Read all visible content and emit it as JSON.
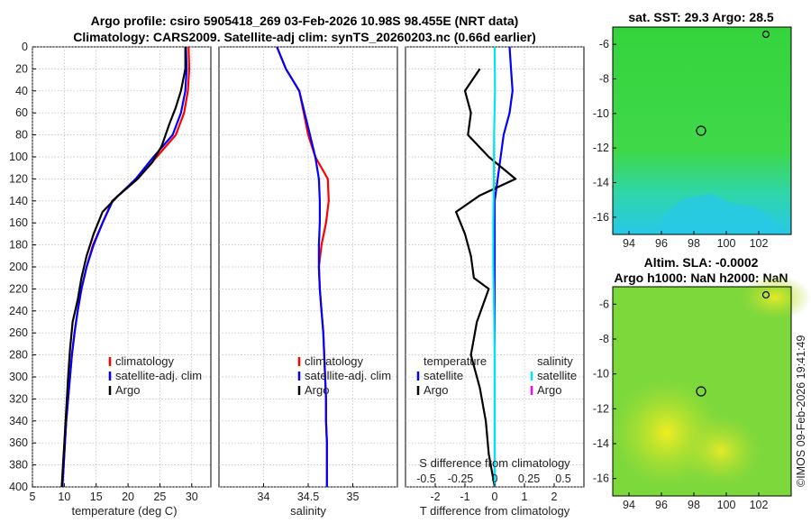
{
  "header": {
    "title_line1": "Argo profile: csiro 5905418_269 03-Feb-2026 10.98S 98.455E (NRT data)",
    "title_line2": "Climatology: CARS2009. Satellite-adj clim: synTS_20260203.nc (0.66d earlier)"
  },
  "colors": {
    "climatology": "#ff0000",
    "satellite": "#0000ff",
    "argo": "#000000",
    "sal_diff": "#00e5ee",
    "sal_argo": "#ff00ff"
  },
  "chart_data": [
    {
      "type": "line",
      "id": "temperature",
      "xlabel": "temperature (deg C)",
      "ylabel": "",
      "xlim": [
        5,
        33
      ],
      "ylim": [
        400,
        0
      ],
      "xticks": [
        5,
        10,
        15,
        20,
        25,
        30
      ],
      "yticks": [
        0,
        20,
        40,
        60,
        80,
        100,
        120,
        140,
        160,
        180,
        200,
        220,
        240,
        260,
        280,
        300,
        320,
        340,
        360,
        380,
        400
      ],
      "grid": true,
      "legend": {
        "position": "lower-right",
        "entries": [
          "climatology",
          "satellite-adj. clim",
          "Argo"
        ]
      },
      "series": [
        {
          "name": "climatology",
          "color": "#ff0000",
          "points": [
            [
              29.5,
              0
            ],
            [
              29.6,
              20
            ],
            [
              29.4,
              40
            ],
            [
              28.8,
              60
            ],
            [
              27.5,
              80
            ],
            [
              24.5,
              100
            ],
            [
              21.5,
              120
            ],
            [
              17.5,
              140
            ],
            [
              16,
              160
            ],
            [
              14.5,
              180
            ],
            [
              13.5,
              200
            ],
            [
              12.7,
              220
            ],
            [
              12.1,
              240
            ],
            [
              11.6,
              260
            ],
            [
              11.2,
              280
            ],
            [
              10.9,
              300
            ],
            [
              10.6,
              320
            ],
            [
              10.3,
              340
            ],
            [
              10.1,
              360
            ],
            [
              9.9,
              380
            ],
            [
              9.7,
              400
            ]
          ]
        },
        {
          "name": "satellite-adj. clim",
          "color": "#0000ff",
          "points": [
            [
              29.1,
              0
            ],
            [
              29.2,
              20
            ],
            [
              29.0,
              40
            ],
            [
              28.3,
              60
            ],
            [
              27,
              80
            ],
            [
              24,
              100
            ],
            [
              21.2,
              120
            ],
            [
              17.6,
              140
            ],
            [
              16,
              160
            ],
            [
              14.6,
              180
            ],
            [
              13.5,
              200
            ],
            [
              12.7,
              220
            ],
            [
              12.1,
              240
            ],
            [
              11.6,
              260
            ],
            [
              11.2,
              280
            ],
            [
              10.9,
              300
            ],
            [
              10.6,
              320
            ],
            [
              10.3,
              340
            ],
            [
              10.1,
              360
            ],
            [
              9.9,
              380
            ],
            [
              9.7,
              400
            ]
          ]
        },
        {
          "name": "Argo",
          "color": "#000000",
          "points": [
            [
              29,
              0
            ],
            [
              29,
              20
            ],
            [
              28.3,
              40
            ],
            [
              27.5,
              55
            ],
            [
              26.5,
              70
            ],
            [
              25.3,
              90
            ],
            [
              23.8,
              105
            ],
            [
              21.5,
              120
            ],
            [
              18.5,
              135
            ],
            [
              16,
              150
            ],
            [
              14.6,
              170
            ],
            [
              13.5,
              190
            ],
            [
              12.7,
              210
            ],
            [
              12.1,
              230
            ],
            [
              11.3,
              250
            ],
            [
              10.9,
              275
            ],
            [
              10.6,
              300
            ],
            [
              10.3,
              330
            ],
            [
              10.0,
              360
            ],
            [
              9.8,
              380
            ],
            [
              9.6,
              400
            ]
          ]
        }
      ]
    },
    {
      "type": "line",
      "id": "salinity",
      "xlabel": "salinity",
      "xlim": [
        33.5,
        35.5
      ],
      "ylim": [
        400,
        0
      ],
      "xticks": [
        34,
        34.5,
        35
      ],
      "yticks": [
        0,
        20,
        40,
        60,
        80,
        100,
        120,
        140,
        160,
        180,
        200,
        220,
        240,
        260,
        280,
        300,
        320,
        340,
        360,
        380,
        400
      ],
      "grid": true,
      "legend": {
        "position": "lower-right",
        "entries": [
          "climatology",
          "satellite-adj. clim",
          "Argo"
        ]
      },
      "series": [
        {
          "name": "climatology",
          "color": "#ff0000",
          "points": [
            [
              34.15,
              0
            ],
            [
              34.25,
              20
            ],
            [
              34.4,
              40
            ],
            [
              34.45,
              60
            ],
            [
              34.5,
              80
            ],
            [
              34.58,
              100
            ],
            [
              34.72,
              120
            ],
            [
              34.73,
              140
            ],
            [
              34.7,
              160
            ],
            [
              34.65,
              180
            ],
            [
              34.62,
              200
            ],
            [
              34.63,
              220
            ],
            [
              34.65,
              240
            ],
            [
              34.67,
              260
            ],
            [
              34.68,
              280
            ],
            [
              34.69,
              300
            ],
            [
              34.7,
              320
            ],
            [
              34.7,
              340
            ],
            [
              34.71,
              360
            ],
            [
              34.71,
              380
            ],
            [
              34.71,
              400
            ]
          ]
        },
        {
          "name": "satellite-adj. clim",
          "color": "#0000ff",
          "points": [
            [
              34.15,
              0
            ],
            [
              34.25,
              20
            ],
            [
              34.4,
              40
            ],
            [
              34.46,
              60
            ],
            [
              34.52,
              80
            ],
            [
              34.58,
              100
            ],
            [
              34.62,
              120
            ],
            [
              34.63,
              140
            ],
            [
              34.63,
              160
            ],
            [
              34.62,
              180
            ],
            [
              34.62,
              200
            ],
            [
              34.63,
              220
            ],
            [
              34.65,
              240
            ],
            [
              34.67,
              260
            ],
            [
              34.68,
              280
            ],
            [
              34.69,
              300
            ],
            [
              34.7,
              320
            ],
            [
              34.7,
              340
            ],
            [
              34.71,
              360
            ],
            [
              34.71,
              380
            ],
            [
              34.71,
              400
            ]
          ]
        }
      ]
    },
    {
      "type": "line",
      "id": "difference",
      "xlabel": "T difference from climatology",
      "xlabel_top": "S difference from climatology",
      "xlim": [
        -3,
        3
      ],
      "ylim": [
        400,
        0
      ],
      "xticks": [
        -2,
        -1,
        0,
        1,
        2
      ],
      "xticks_s": [
        -0.5,
        -0.25,
        0,
        0.25,
        0.5
      ],
      "grid": true,
      "legend": {
        "position": "lower-center",
        "temperature_title": "temperature",
        "salinity_title": "salinity",
        "temperature_entries": [
          "satellite",
          "Argo"
        ],
        "salinity_entries": [
          "satellite",
          "Argo"
        ]
      },
      "series": [
        {
          "name": "T satellite",
          "color": "#0000ff",
          "points": [
            [
              0.5,
              0
            ],
            [
              0.55,
              20
            ],
            [
              0.6,
              40
            ],
            [
              0.5,
              60
            ],
            [
              0.3,
              80
            ],
            [
              0.2,
              100
            ],
            [
              0.1,
              120
            ],
            [
              0,
              140
            ],
            [
              0,
              180
            ],
            [
              0,
              220
            ],
            [
              0,
              260
            ],
            [
              0,
              300
            ],
            [
              0,
              340
            ],
            [
              0,
              380
            ],
            [
              0,
              400
            ]
          ]
        },
        {
          "name": "T Argo",
          "color": "#000000",
          "points": [
            [
              -0.5,
              20
            ],
            [
              -1,
              40
            ],
            [
              -0.8,
              60
            ],
            [
              -0.9,
              80
            ],
            [
              -0.2,
              100
            ],
            [
              0.7,
              120
            ],
            [
              -0.5,
              135
            ],
            [
              -1.3,
              150
            ],
            [
              -1.0,
              170
            ],
            [
              -0.8,
              190
            ],
            [
              -0.7,
              210
            ],
            [
              -0.2,
              220
            ],
            [
              -0.6,
              250
            ],
            [
              -0.8,
              280
            ],
            [
              -0.5,
              310
            ],
            [
              -0.3,
              340
            ],
            [
              -0.2,
              370
            ],
            [
              0,
              400
            ]
          ]
        },
        {
          "name": "S satellite",
          "color": "#00e5ee",
          "points": [
            [
              0,
              0
            ],
            [
              0.01,
              40
            ],
            [
              -0.02,
              80
            ],
            [
              -0.03,
              120
            ],
            [
              -0.05,
              160
            ],
            [
              -0.05,
              200
            ],
            [
              -0.02,
              240
            ],
            [
              0,
              280
            ],
            [
              0,
              320
            ],
            [
              0,
              360
            ],
            [
              0,
              400
            ]
          ]
        }
      ]
    },
    {
      "type": "heatmap",
      "id": "sst_map",
      "title": "sat. SST: 29.3 Argo: 28.5",
      "xticks": [
        94,
        96,
        98,
        100,
        102
      ],
      "yticks": [
        -6,
        -8,
        -10,
        -12,
        -14,
        -16
      ],
      "xlim": [
        93,
        104
      ],
      "ylim": [
        -17,
        -5
      ],
      "argo_position": [
        98.45,
        -10.98
      ]
    },
    {
      "type": "heatmap",
      "id": "sla_map",
      "title_line1": "Altim. SLA: -0.0002",
      "title_line2": "Argo h1000: NaN h2000: NaN",
      "xticks": [
        94,
        96,
        98,
        100,
        102
      ],
      "yticks": [
        -6,
        -8,
        -10,
        -12,
        -14,
        -16
      ],
      "xlim": [
        93,
        104
      ],
      "ylim": [
        -17,
        -5
      ],
      "argo_position": [
        98.45,
        -10.98
      ]
    }
  ],
  "watermark": "©IMOS 09-Feb-2026 19:41:49"
}
